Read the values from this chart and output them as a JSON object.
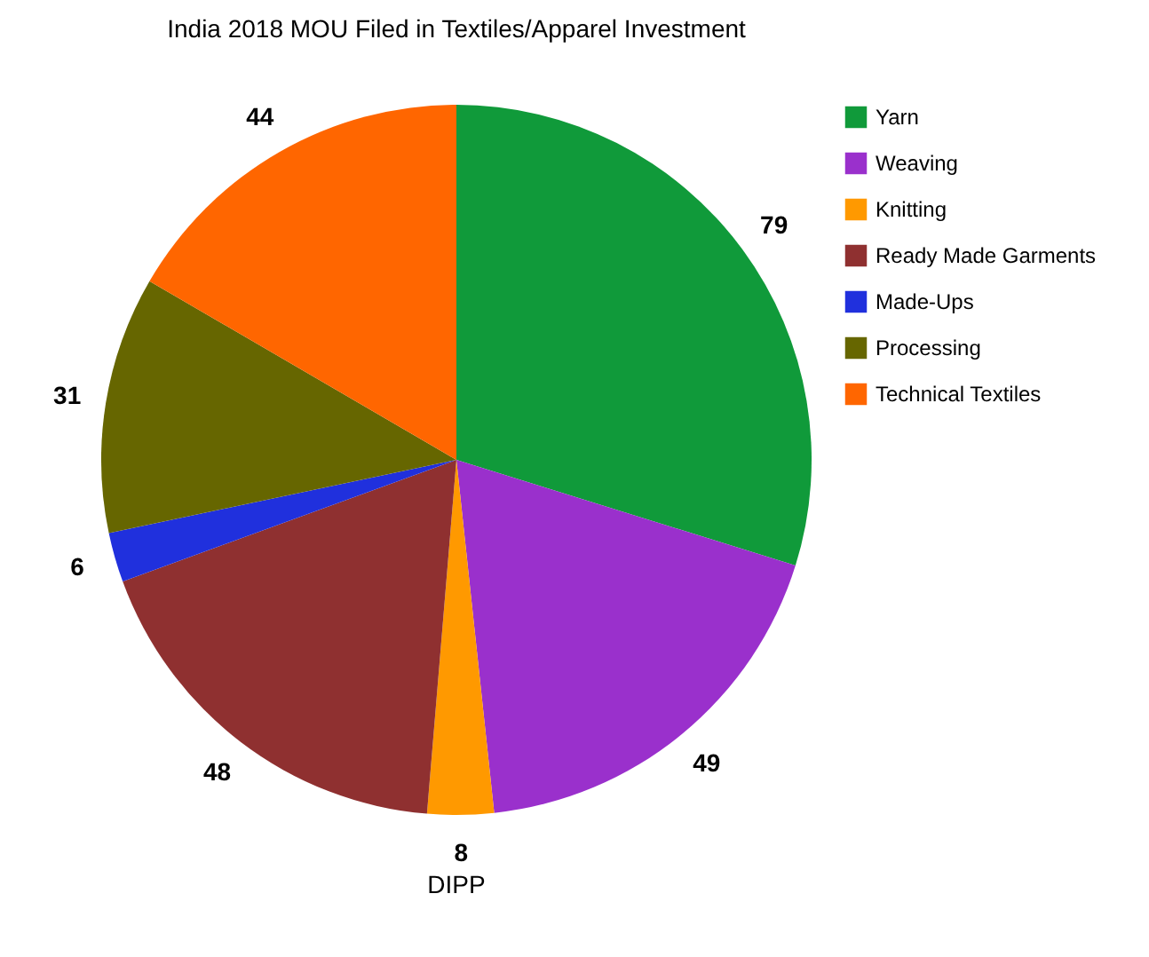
{
  "chart_data": {
    "type": "pie",
    "title": "India 2018 MOU Filed in Textiles/Apparel Investment",
    "categories": [
      "Yarn",
      "Weaving",
      "Knitting",
      "Ready Made Garments",
      "Made-Ups",
      "Processing",
      "Technical Textiles"
    ],
    "values": [
      79,
      49,
      8,
      48,
      6,
      31,
      44
    ],
    "colors": [
      "#109a3a",
      "#9a30cc",
      "#ff9900",
      "#8f3030",
      "#2030dd",
      "#666600",
      "#ff6600"
    ],
    "data_labels": true,
    "legend": "right",
    "annotations": [
      "DIPP"
    ]
  }
}
